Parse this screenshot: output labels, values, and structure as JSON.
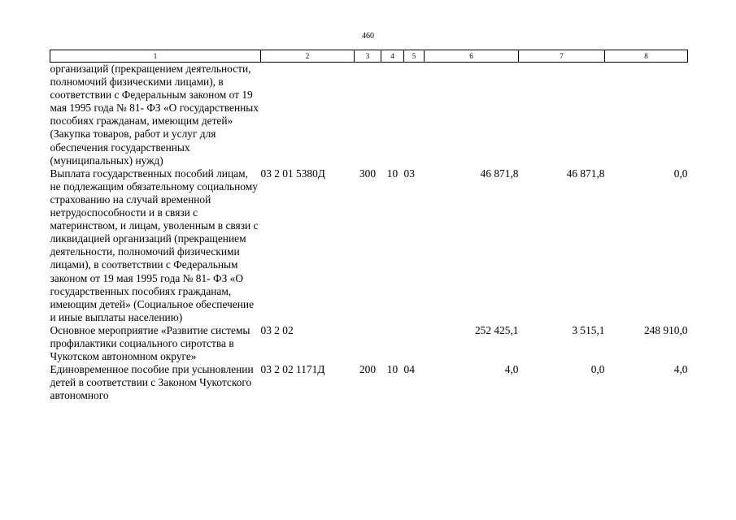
{
  "page_number": "460",
  "columns": [
    "1",
    "2",
    "3",
    "4",
    "5",
    "6",
    "7",
    "8"
  ],
  "rows": [
    {
      "name": "организаций (прекращением деятельности, полномочий физическими лицами), в соответствии с Федеральным законом от 19 мая 1995 года № 81- ФЗ «О государственных пособиях гражданам, имеющим детей» (Закупка товаров, работ и услуг для обеспечения государственных (муниципальных) нужд)",
      "code": "",
      "c3": "",
      "c4": "",
      "c5": "",
      "c6": "",
      "c7": "",
      "c8": ""
    },
    {
      "name": "Выплата государственных пособий лицам, не подлежащим обязательному социальному страхованию на случай временной нетрудоспособности и в связи с материнством, и лицам, уволенным в связи с ликвидацией организаций (прекращением деятельности, полномочий физическими лицами), в соответствии с Федеральным законом от 19 мая 1995 года № 81- ФЗ «О государственных пособиях гражданам, имеющим детей» (Социальное обеспечение и иные выплаты населению)",
      "code": "03 2 01 5380Д",
      "c3": "300",
      "c4": "10",
      "c5": "03",
      "c6": "46 871,8",
      "c7": "46 871,8",
      "c8": "0,0"
    },
    {
      "name": "Основное мероприятие «Развитие системы профилактики социального сиротства в Чукотском автономном округе»",
      "code": "03 2 02",
      "c3": "",
      "c4": "",
      "c5": "",
      "c6": "252 425,1",
      "c7": "3 515,1",
      "c8": "248 910,0"
    },
    {
      "name": "Единовременное пособие при усыновлении детей в соответствии с Законом Чукотского автономного",
      "code": "03 2 02 1171Д",
      "c3": "200",
      "c4": "10",
      "c5": "04",
      "c6": "4,0",
      "c7": "0,0",
      "c8": "4,0"
    }
  ]
}
